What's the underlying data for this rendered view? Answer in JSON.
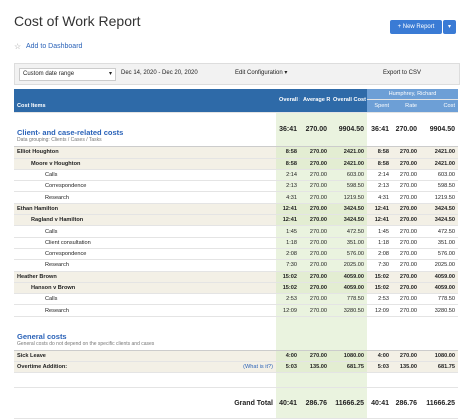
{
  "header": {
    "title": "Cost of Work Report",
    "new_report": "+ New Report",
    "add_to_dashboard": "Add to Dashboard"
  },
  "toolbar": {
    "range": "Custom date range",
    "dates": "Dec 14, 2020 - Dec 20, 2020",
    "edit": "Edit Configuration",
    "export": "Export to CSV"
  },
  "table": {
    "columns": [
      "Cost Items",
      "Overall Spent (h:m)",
      "Average Rate ($/h)",
      "Overall Cost ($)"
    ],
    "group": "Humphrey, Richard",
    "subcolumns": [
      "Spent",
      "Rate",
      "Cost"
    ],
    "sections": [
      {
        "title": "Client- and case-related costs",
        "subtitle": "Data grouping: Clients / Cases / Tasks",
        "spent": "36:41",
        "rate": "270.00",
        "cost": "9904.50",
        "rows": [
          {
            "label": "Elliot Houghton",
            "spent": "8:58",
            "rate": "270.00",
            "cost": "2421.00",
            "children": [
              {
                "label": "Moore v Houghton",
                "spent": "8:58",
                "rate": "270.00",
                "cost": "2421.00",
                "children": [
                  {
                    "label": "Calls",
                    "spent": "2:14",
                    "rate": "270.00",
                    "cost": "603.00"
                  },
                  {
                    "label": "Correspondence",
                    "spent": "2:13",
                    "rate": "270.00",
                    "cost": "598.50"
                  },
                  {
                    "label": "Research",
                    "spent": "4:31",
                    "rate": "270.00",
                    "cost": "1219.50"
                  }
                ]
              }
            ]
          },
          {
            "label": "Ethan Hamilton",
            "spent": "12:41",
            "rate": "270.00",
            "cost": "3424.50",
            "children": [
              {
                "label": "Ragland v Hamilton",
                "spent": "12:41",
                "rate": "270.00",
                "cost": "3424.50",
                "children": [
                  {
                    "label": "Calls",
                    "spent": "1:45",
                    "rate": "270.00",
                    "cost": "472.50"
                  },
                  {
                    "label": "Client consultation",
                    "spent": "1:18",
                    "rate": "270.00",
                    "cost": "351.00"
                  },
                  {
                    "label": "Correspondence",
                    "spent": "2:08",
                    "rate": "270.00",
                    "cost": "576.00"
                  },
                  {
                    "label": "Research",
                    "spent": "7:30",
                    "rate": "270.00",
                    "cost": "2025.00"
                  }
                ]
              }
            ]
          },
          {
            "label": "Heather Brown",
            "spent": "15:02",
            "rate": "270.00",
            "cost": "4059.00",
            "children": [
              {
                "label": "Hanson v Brown",
                "spent": "15:02",
                "rate": "270.00",
                "cost": "4059.00",
                "children": [
                  {
                    "label": "Calls",
                    "spent": "2:53",
                    "rate": "270.00",
                    "cost": "778.50"
                  },
                  {
                    "label": "Research",
                    "spent": "12:09",
                    "rate": "270.00",
                    "cost": "3280.50"
                  }
                ]
              }
            ]
          }
        ]
      },
      {
        "title": "General costs",
        "subtitle": "General costs do not depend on the specific clients and cases",
        "rows": [
          {
            "label": "Sick Leave",
            "spent": "4:00",
            "rate": "270.00",
            "cost": "1080.00"
          },
          {
            "label": "Overtime Addition:",
            "link": "(What is it?)",
            "spent": "5:03",
            "rate": "135.00",
            "cost": "681.75"
          }
        ]
      }
    ],
    "grand_total": {
      "label": "Grand Total",
      "spent": "40:41",
      "rate": "286.76",
      "cost": "11666.25"
    }
  }
}
